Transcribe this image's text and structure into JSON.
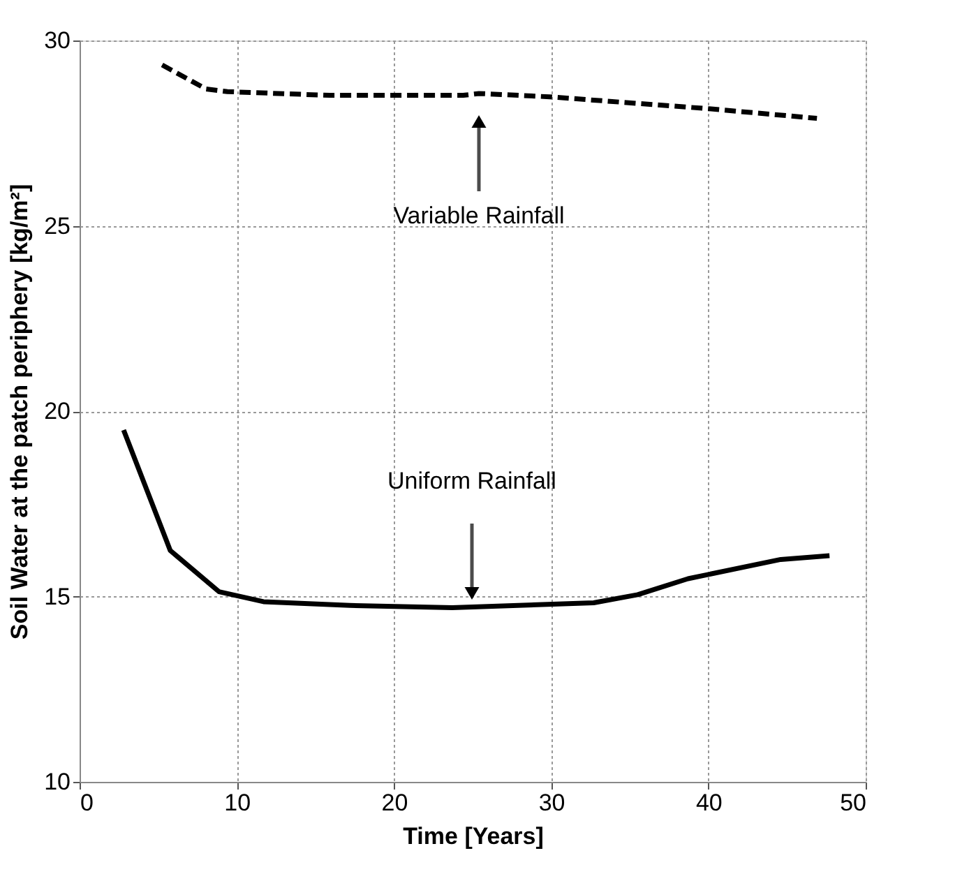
{
  "chart_data": {
    "type": "line",
    "xlabel": "Time [Years]",
    "ylabel": "Soil Water at the patch periphery [kg/m²]",
    "xlim": [
      0,
      50
    ],
    "xticks": [
      0,
      10,
      20,
      30,
      40,
      50
    ],
    "ylim": [
      10,
      30
    ],
    "yticks": [
      10,
      15,
      20,
      25,
      30
    ],
    "grid": true,
    "series": [
      {
        "color": "#000000",
        "line_style": "dashed",
        "x": [
          5.25,
          8.05,
          9.4,
          15.9,
          24.4,
          25.4,
          29.9,
          40.0,
          46.9
        ],
        "values": [
          29.34,
          28.69,
          28.62,
          28.52,
          28.52,
          28.57,
          28.48,
          28.16,
          27.9
        ]
      },
      {
        "color": "#000000",
        "line_style": "solid",
        "x": [
          2.8,
          5.77,
          8.87,
          11.7,
          17.2,
          23.7,
          32.7,
          35.5,
          38.7,
          44.6,
          47.7
        ],
        "values": [
          19.49,
          16.24,
          15.13,
          14.86,
          14.76,
          14.7,
          14.83,
          15.05,
          15.48,
          16.0,
          16.1
        ]
      }
    ],
    "annotations": [
      "Variable Rainfall",
      "Uniform Rainfall"
    ]
  }
}
